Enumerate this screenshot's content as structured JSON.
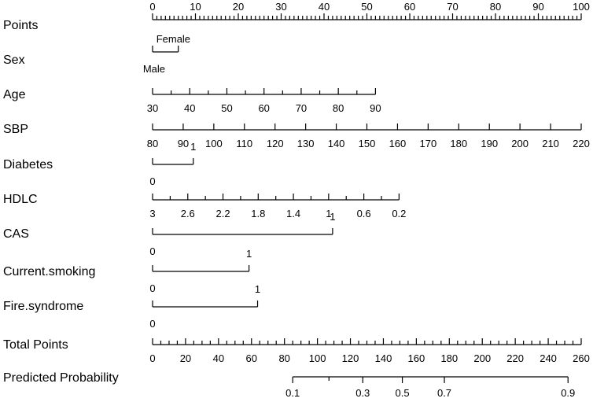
{
  "chart_data": {
    "type": "nomogram",
    "rows": [
      {
        "label": "Points",
        "kind": "numeric",
        "ticks": [
          "0",
          "10",
          "20",
          "30",
          "40",
          "50",
          "60",
          "70",
          "80",
          "90",
          "100"
        ],
        "labels_above": true,
        "minor_per_major": 10
      },
      {
        "label": "Sex",
        "kind": "categorical",
        "levels": [
          {
            "name": "Male",
            "points": 0
          },
          {
            "name": "Female",
            "points": 6
          }
        ]
      },
      {
        "label": "Age",
        "kind": "numeric",
        "ticks": [
          "30",
          "40",
          "50",
          "60",
          "70",
          "80",
          "90"
        ],
        "labels_above": false,
        "minor_per_major": 2
      },
      {
        "label": "SBP",
        "kind": "numeric",
        "ticks": [
          "80",
          "90",
          "100",
          "110",
          "120",
          "130",
          "140",
          "150",
          "160",
          "170",
          "180",
          "190",
          "200",
          "210",
          "220"
        ],
        "labels_above": false,
        "minor_per_major": 1
      },
      {
        "label": "Diabetes",
        "kind": "categorical",
        "levels": [
          {
            "name": "0",
            "points": 0
          },
          {
            "name": "1",
            "points": 9.5
          }
        ]
      },
      {
        "label": "HDLC",
        "kind": "numeric",
        "ticks": [
          "3",
          "2.6",
          "2.2",
          "1.8",
          "1.4",
          "1",
          "0.6",
          "0.2"
        ],
        "labels_above": false,
        "minor_per_major": 2
      },
      {
        "label": "CAS",
        "kind": "categorical",
        "levels": [
          {
            "name": "0",
            "points": 0
          },
          {
            "name": "1",
            "points": 42
          }
        ]
      },
      {
        "label": "Current.smoking",
        "kind": "categorical",
        "levels": [
          {
            "name": "0",
            "points": 0
          },
          {
            "name": "1",
            "points": 22.5
          }
        ]
      },
      {
        "label": "Fire.syndrome",
        "kind": "categorical",
        "levels": [
          {
            "name": "0",
            "points": 0
          },
          {
            "name": "1",
            "points": 24.5
          }
        ]
      },
      {
        "label": "Total Points",
        "kind": "numeric",
        "ticks": [
          "0",
          "20",
          "40",
          "60",
          "80",
          "100",
          "120",
          "140",
          "160",
          "180",
          "200",
          "220",
          "240",
          "260"
        ],
        "labels_above": false,
        "minor_per_major": 4
      },
      {
        "label": "Predicted Probability",
        "kind": "probability",
        "ticks": [
          "0.1",
          "0.3",
          "0.5",
          "0.7",
          "0.9"
        ],
        "total_points": [
          85,
          127.5,
          151.5,
          177,
          252
        ],
        "range_total_points": [
          85,
          252
        ],
        "minor_total_points": [
          107
        ]
      }
    ],
    "points_range": [
      0,
      100
    ],
    "total_points_range": [
      0,
      260
    ]
  }
}
